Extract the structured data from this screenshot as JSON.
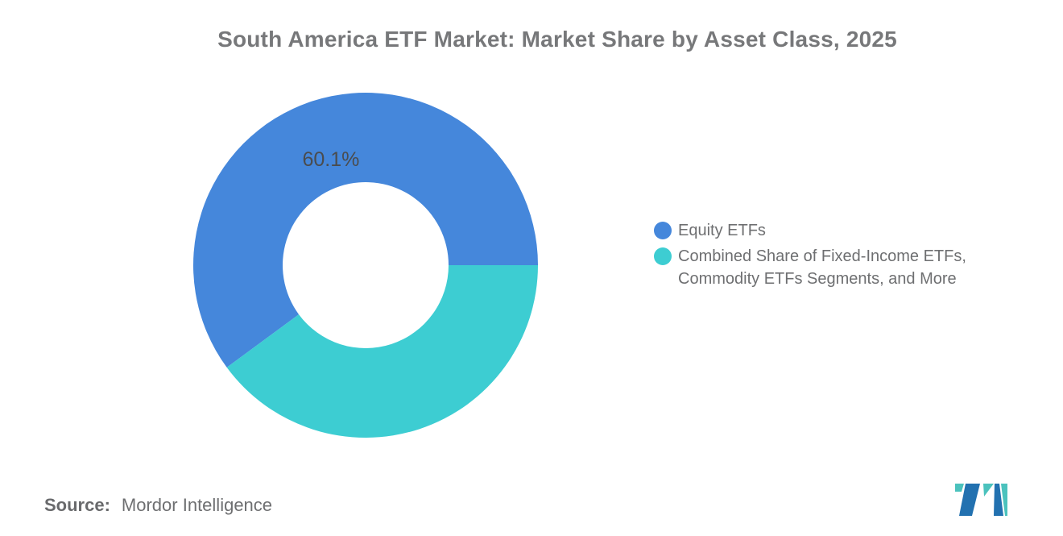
{
  "title": "South America ETF Market: Market Share by Asset Class, 2025",
  "chart_data": {
    "type": "pie",
    "variant": "donut",
    "title": "South America ETF Market: Market Share by Asset Class, 2025",
    "categories": [
      "Equity ETFs",
      "Combined Share of Fixed-Income ETFs, Commodity ETFs Segments, and More"
    ],
    "values": [
      60.1,
      39.9
    ],
    "slice_labels": [
      "60.1%",
      null
    ],
    "colors": [
      "#4587DB",
      "#3DCDD2"
    ],
    "start_angle_deg": 0,
    "direction": "counterclockwise",
    "inner_radius_ratio": 0.48,
    "legend_position": "right",
    "grid": false
  },
  "legend": {
    "items": [
      {
        "label": "Equity ETFs",
        "color": "#4587DB"
      },
      {
        "label": "Combined Share of Fixed-Income ETFs,\nCommodity ETFs Segments, and More",
        "color": "#3DCDD2"
      }
    ]
  },
  "source": {
    "label": "Source:",
    "value": "Mordor Intelligence"
  },
  "logo": {
    "name": "mordor-intelligence-logo",
    "teal": "#4BC2BD",
    "blue": "#2271B0"
  }
}
